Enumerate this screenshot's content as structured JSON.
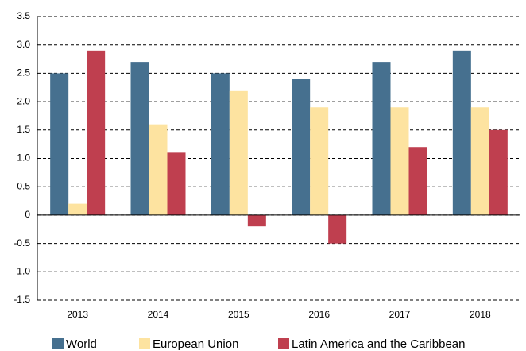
{
  "chart_data": {
    "type": "bar",
    "categories": [
      "2013",
      "2014",
      "2015",
      "2016",
      "2017",
      "2018"
    ],
    "series": [
      {
        "name": "World",
        "color": "#46708f",
        "values": [
          2.5,
          2.7,
          2.5,
          2.4,
          2.7,
          2.9
        ]
      },
      {
        "name": "European Union",
        "color": "#fde3a0",
        "values": [
          0.2,
          1.6,
          2.2,
          1.9,
          1.9,
          1.9
        ]
      },
      {
        "name": "Latin America and the Caribbean",
        "color": "#bf3f4f",
        "values": [
          2.9,
          1.1,
          -0.2,
          -0.5,
          1.2,
          1.5
        ]
      }
    ],
    "ylim": [
      -1.5,
      3.5
    ],
    "yticks": [
      -1.5,
      {
        "value": -1,
        "label": "-1.0"
      },
      -0.5,
      0,
      0.5,
      {
        "value": 1,
        "label": "1.0"
      },
      1.5,
      {
        "value": 2,
        "label": "2.0"
      },
      2.5,
      {
        "value": 3,
        "label": "3.0"
      },
      3.5
    ],
    "grid": true
  }
}
